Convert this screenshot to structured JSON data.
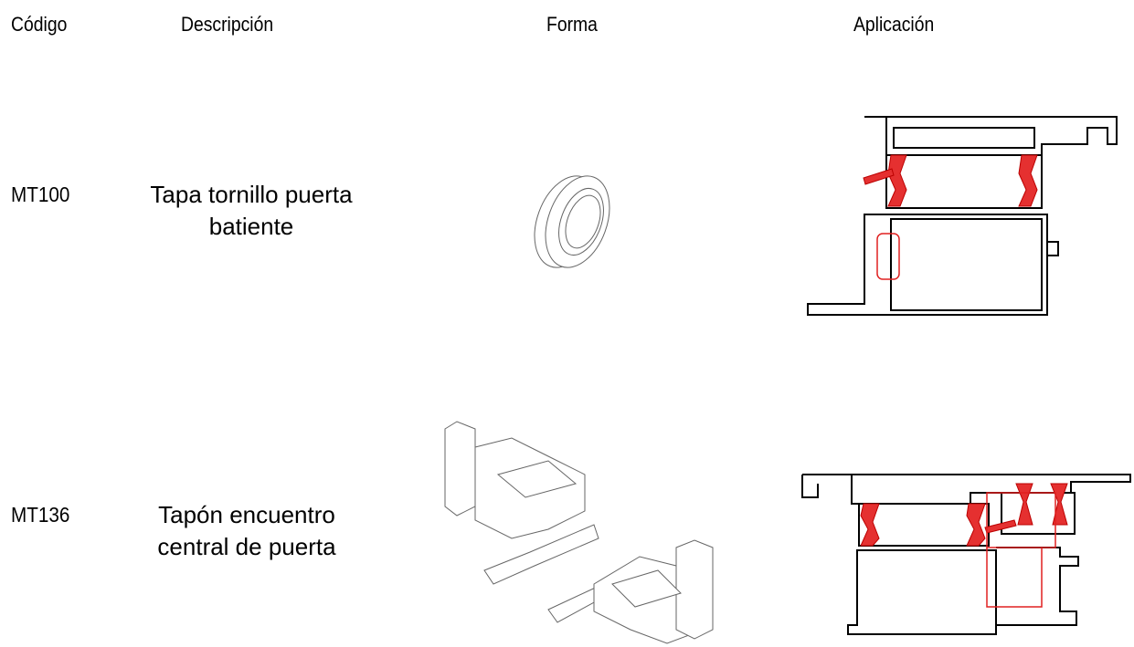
{
  "header": [
    "Código",
    "Descripción",
    "Forma",
    "Aplicación"
  ],
  "rows": [
    {
      "code": "MT100",
      "description": [
        "Tapa tornillo puerta",
        "batiente"
      ]
    },
    {
      "code": "MT136",
      "description": [
        "Tapón encuentro",
        "central de puerta"
      ]
    }
  ]
}
